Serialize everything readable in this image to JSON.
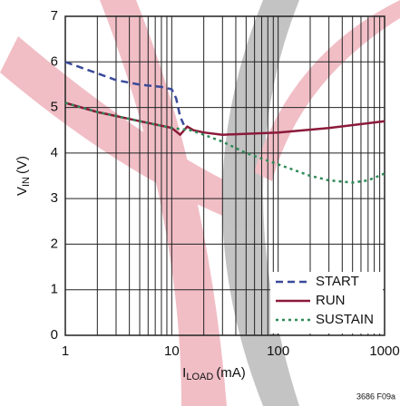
{
  "chart_data": {
    "type": "line",
    "y_label": {
      "main": "V",
      "sub": "IN",
      "unit": "(V)"
    },
    "x_label": {
      "main": "I",
      "sub": "LOAD",
      "unit": "(mA)"
    },
    "footnote": "3686 F09a",
    "x_log": true,
    "xlim": [
      1,
      1000
    ],
    "xticks": [
      1,
      10,
      100,
      1000
    ],
    "x_minor_ticks": [
      2,
      3,
      4,
      5,
      6,
      7,
      8,
      9,
      20,
      30,
      40,
      50,
      60,
      70,
      80,
      90,
      200,
      300,
      400,
      500,
      600,
      700,
      800,
      900
    ],
    "ylim": [
      0,
      7
    ],
    "yticks": [
      0,
      1,
      2,
      3,
      4,
      5,
      6,
      7
    ],
    "grid": true,
    "legend": "lower right",
    "series": [
      {
        "name": "START",
        "color": "#3a4a9a",
        "style": "dashed",
        "x": [
          1,
          1.5,
          2,
          3,
          5,
          8,
          10,
          11,
          12,
          13
        ],
        "values": [
          6.0,
          5.85,
          5.75,
          5.6,
          5.5,
          5.45,
          5.4,
          5.2,
          4.8,
          4.62
        ]
      },
      {
        "name": "RUN",
        "color": "#8b1a3a",
        "style": "solid",
        "x": [
          1,
          2,
          5,
          10,
          12,
          14,
          16,
          20,
          30,
          100,
          300,
          1000
        ],
        "values": [
          5.1,
          4.9,
          4.7,
          4.55,
          4.4,
          4.58,
          4.5,
          4.45,
          4.4,
          4.45,
          4.55,
          4.7
        ]
      },
      {
        "name": "SUSTAIN",
        "color": "#2e8b57",
        "style": "dotted",
        "x": [
          1,
          2,
          5,
          10,
          15,
          20,
          30,
          50,
          100,
          200,
          300,
          500,
          700,
          1000
        ],
        "values": [
          5.1,
          4.9,
          4.7,
          4.55,
          4.5,
          4.4,
          4.25,
          4.0,
          3.75,
          3.5,
          3.4,
          3.35,
          3.4,
          3.55
        ]
      }
    ]
  }
}
